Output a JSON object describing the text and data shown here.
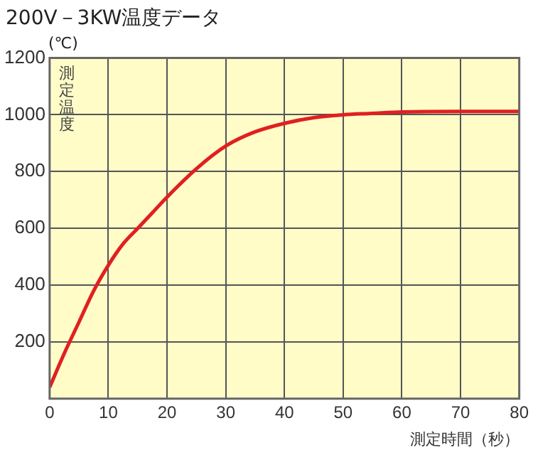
{
  "chart_data": {
    "type": "line",
    "title": "200V－3KW温度データ",
    "xlabel": "測定時間（秒）",
    "ylabel": "測定温度",
    "annotations": [
      "(℃)"
    ],
    "x": [
      0,
      2.5,
      5,
      7.5,
      10,
      12.5,
      15,
      17.5,
      20,
      25,
      30,
      35,
      40,
      45,
      50,
      55,
      60,
      70,
      80
    ],
    "series": [
      {
        "color": "#e02020",
        "values": [
          40,
          160,
          270,
          380,
          470,
          545,
          600,
          655,
          710,
          810,
          890,
          940,
          970,
          990,
          1000,
          1005,
          1010,
          1012,
          1012
        ]
      }
    ],
    "xlim": [
      0,
      80
    ],
    "xticks": [
      0,
      10,
      20,
      30,
      40,
      50,
      60,
      70,
      80
    ],
    "ylim": [
      0,
      1200
    ],
    "yticks": [
      {
        "value": 0,
        "label": null
      },
      200,
      400,
      600,
      800,
      1000,
      1200
    ],
    "grid": true,
    "legend": false,
    "marker": "none",
    "line_style": "solid"
  }
}
